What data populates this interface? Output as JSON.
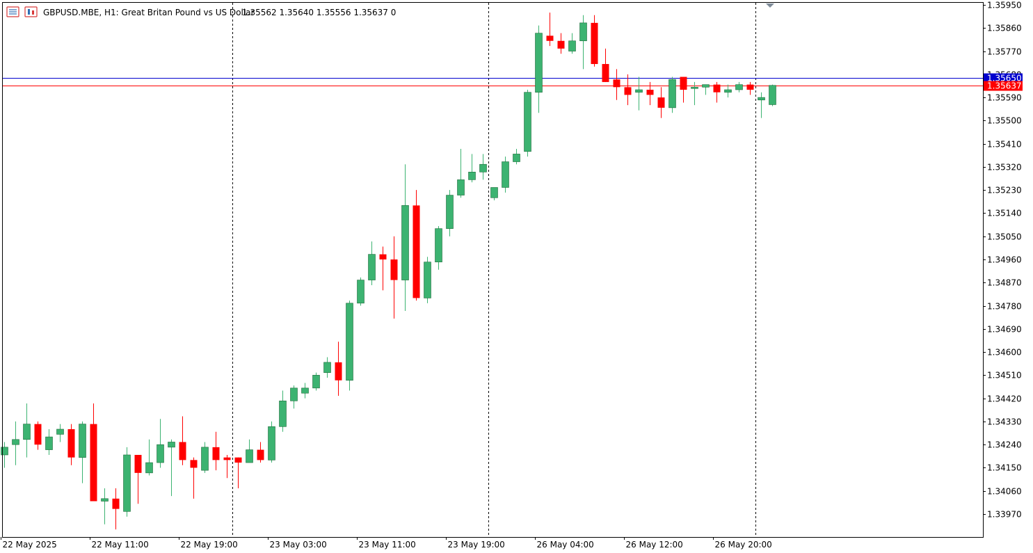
{
  "header": {
    "symbol_info": "GBPUSD.MBE, H1:  Great Britan Pound vs US Dollar",
    "ohlc": "1.35562 1.35640 1.35556 1.35637  0"
  },
  "colors": {
    "bull": "#3cb371",
    "bear": "#ff0000",
    "bid_line": "#0000cd",
    "ask_line": "#ff0000",
    "bid_tag": "#0000cd",
    "ask_tag": "#ff0000",
    "grid": "#000000",
    "axis": "#000000"
  },
  "chart_data": {
    "type": "candlestick",
    "symbol": "GBPUSD.MBE",
    "timeframe": "H1",
    "ylim": [
      1.33885,
      1.35955
    ],
    "y_ticks": [
      "1.35950",
      "1.35860",
      "1.35770",
      "1.35680",
      "1.35590",
      "1.35500",
      "1.35410",
      "1.35320",
      "1.35230",
      "1.35140",
      "1.35050",
      "1.34960",
      "1.34870",
      "1.34780",
      "1.34690",
      "1.34600",
      "1.34510",
      "1.34420",
      "1.34330",
      "1.34240",
      "1.34150",
      "1.34060",
      "1.33970"
    ],
    "x_ticks": [
      {
        "index": 0,
        "label": "22 May 2025"
      },
      {
        "index": 8,
        "label": "22 May 11:00"
      },
      {
        "index": 16,
        "label": "22 May 19:00"
      },
      {
        "index": 24,
        "label": "23 May 03:00"
      },
      {
        "index": 32,
        "label": "23 May 11:00"
      },
      {
        "index": 40,
        "label": "23 May 19:00"
      },
      {
        "index": 48,
        "label": "26 May 04:00"
      },
      {
        "index": 56,
        "label": "26 May 12:00"
      },
      {
        "index": 64,
        "label": "26 May 20:00"
      }
    ],
    "day_separators": [
      21,
      44,
      68
    ],
    "current_price": {
      "bid": 1.35637,
      "bid_label": "1.35637",
      "ask": 1.3565,
      "ask_label": "1.35650"
    },
    "candles": [
      {
        "o": 1.342,
        "h": 1.3425,
        "l": 1.3415,
        "c": 1.3423
      },
      {
        "o": 1.3424,
        "h": 1.3433,
        "l": 1.3416,
        "c": 1.3426
      },
      {
        "o": 1.3426,
        "h": 1.344,
        "l": 1.3419,
        "c": 1.3432
      },
      {
        "o": 1.3432,
        "h": 1.3433,
        "l": 1.3422,
        "c": 1.3424
      },
      {
        "o": 1.3422,
        "h": 1.343,
        "l": 1.342,
        "c": 1.3427
      },
      {
        "o": 1.3428,
        "h": 1.3432,
        "l": 1.3425,
        "c": 1.343
      },
      {
        "o": 1.343,
        "h": 1.3432,
        "l": 1.3416,
        "c": 1.3419
      },
      {
        "o": 1.3419,
        "h": 1.3433,
        "l": 1.3409,
        "c": 1.3432
      },
      {
        "o": 1.3432,
        "h": 1.344,
        "l": 1.3402,
        "c": 1.3402
      },
      {
        "o": 1.3402,
        "h": 1.3407,
        "l": 1.3393,
        "c": 1.3403
      },
      {
        "o": 1.3403,
        "h": 1.3407,
        "l": 1.3391,
        "c": 1.3399
      },
      {
        "o": 1.3398,
        "h": 1.3423,
        "l": 1.3396,
        "c": 1.342
      },
      {
        "o": 1.342,
        "h": 1.342,
        "l": 1.3401,
        "c": 1.3413
      },
      {
        "o": 1.3413,
        "h": 1.3426,
        "l": 1.3412,
        "c": 1.3417
      },
      {
        "o": 1.3417,
        "h": 1.3434,
        "l": 1.3415,
        "c": 1.3424
      },
      {
        "o": 1.3423,
        "h": 1.3426,
        "l": 1.3404,
        "c": 1.3425
      },
      {
        "o": 1.3425,
        "h": 1.3435,
        "l": 1.3416,
        "c": 1.3418
      },
      {
        "o": 1.3418,
        "h": 1.3419,
        "l": 1.3403,
        "c": 1.3415
      },
      {
        "o": 1.3414,
        "h": 1.3425,
        "l": 1.3413,
        "c": 1.3423
      },
      {
        "o": 1.3423,
        "h": 1.3429,
        "l": 1.3414,
        "c": 1.3418
      },
      {
        "o": 1.3419,
        "h": 1.342,
        "l": 1.3411,
        "c": 1.3418
      },
      {
        "o": 1.3419,
        "h": 1.3419,
        "l": 1.3407,
        "c": 1.3417
      },
      {
        "o": 1.3417,
        "h": 1.3426,
        "l": 1.3417,
        "c": 1.3422
      },
      {
        "o": 1.3422,
        "h": 1.3425,
        "l": 1.3417,
        "c": 1.3418
      },
      {
        "o": 1.3418,
        "h": 1.3433,
        "l": 1.3417,
        "c": 1.3431
      },
      {
        "o": 1.3431,
        "h": 1.3445,
        "l": 1.3429,
        "c": 1.3441
      },
      {
        "o": 1.3441,
        "h": 1.3447,
        "l": 1.3438,
        "c": 1.3446
      },
      {
        "o": 1.3444,
        "h": 1.3448,
        "l": 1.3442,
        "c": 1.3446
      },
      {
        "o": 1.3446,
        "h": 1.3452,
        "l": 1.3445,
        "c": 1.3451
      },
      {
        "o": 1.3452,
        "h": 1.3458,
        "l": 1.345,
        "c": 1.3456
      },
      {
        "o": 1.3456,
        "h": 1.3464,
        "l": 1.3443,
        "c": 1.3449
      },
      {
        "o": 1.3449,
        "h": 1.348,
        "l": 1.3445,
        "c": 1.3479
      },
      {
        "o": 1.3479,
        "h": 1.3489,
        "l": 1.3478,
        "c": 1.3488
      },
      {
        "o": 1.3488,
        "h": 1.3503,
        "l": 1.3486,
        "c": 1.3498
      },
      {
        "o": 1.3498,
        "h": 1.3501,
        "l": 1.3484,
        "c": 1.3496
      },
      {
        "o": 1.3496,
        "h": 1.3505,
        "l": 1.3473,
        "c": 1.3488
      },
      {
        "o": 1.3488,
        "h": 1.3533,
        "l": 1.3476,
        "c": 1.3517
      },
      {
        "o": 1.3517,
        "h": 1.3523,
        "l": 1.348,
        "c": 1.3481
      },
      {
        "o": 1.3481,
        "h": 1.3497,
        "l": 1.3479,
        "c": 1.3495
      },
      {
        "o": 1.3495,
        "h": 1.3509,
        "l": 1.3492,
        "c": 1.3508
      },
      {
        "o": 1.3508,
        "h": 1.3523,
        "l": 1.3505,
        "c": 1.3521
      },
      {
        "o": 1.3521,
        "h": 1.3539,
        "l": 1.352,
        "c": 1.3527
      },
      {
        "o": 1.3527,
        "h": 1.3537,
        "l": 1.3526,
        "c": 1.353
      },
      {
        "o": 1.353,
        "h": 1.3537,
        "l": 1.3527,
        "c": 1.3533
      },
      {
        "o": 1.352,
        "h": 1.3524,
        "l": 1.3519,
        "c": 1.3524
      },
      {
        "o": 1.3524,
        "h": 1.3536,
        "l": 1.3522,
        "c": 1.3534
      },
      {
        "o": 1.3534,
        "h": 1.3539,
        "l": 1.3533,
        "c": 1.3537
      },
      {
        "o": 1.3538,
        "h": 1.3562,
        "l": 1.3536,
        "c": 1.3561
      },
      {
        "o": 1.3561,
        "h": 1.3587,
        "l": 1.3553,
        "c": 1.3584
      },
      {
        "o": 1.3583,
        "h": 1.3592,
        "l": 1.3579,
        "c": 1.3581
      },
      {
        "o": 1.3581,
        "h": 1.3584,
        "l": 1.3576,
        "c": 1.3578
      },
      {
        "o": 1.3577,
        "h": 1.3584,
        "l": 1.3576,
        "c": 1.3581
      },
      {
        "o": 1.3581,
        "h": 1.3591,
        "l": 1.357,
        "c": 1.3588
      },
      {
        "o": 1.3588,
        "h": 1.3591,
        "l": 1.3571,
        "c": 1.3572
      },
      {
        "o": 1.3572,
        "h": 1.3578,
        "l": 1.3565,
        "c": 1.3565
      },
      {
        "o": 1.3566,
        "h": 1.357,
        "l": 1.3558,
        "c": 1.3563
      },
      {
        "o": 1.3563,
        "h": 1.3568,
        "l": 1.3556,
        "c": 1.356
      },
      {
        "o": 1.3561,
        "h": 1.3567,
        "l": 1.3554,
        "c": 1.3562
      },
      {
        "o": 1.3562,
        "h": 1.3565,
        "l": 1.3556,
        "c": 1.356
      },
      {
        "o": 1.3559,
        "h": 1.3563,
        "l": 1.3551,
        "c": 1.3555
      },
      {
        "o": 1.3555,
        "h": 1.3567,
        "l": 1.3553,
        "c": 1.3566
      },
      {
        "o": 1.3567,
        "h": 1.3567,
        "l": 1.3557,
        "c": 1.3562
      },
      {
        "o": 1.3563,
        "h": 1.3565,
        "l": 1.3556,
        "c": 1.3563
      },
      {
        "o": 1.3563,
        "h": 1.3564,
        "l": 1.356,
        "c": 1.3564
      },
      {
        "o": 1.3564,
        "h": 1.3565,
        "l": 1.3557,
        "c": 1.3561
      },
      {
        "o": 1.3561,
        "h": 1.3564,
        "l": 1.3559,
        "c": 1.3562
      },
      {
        "o": 1.3562,
        "h": 1.3565,
        "l": 1.3561,
        "c": 1.3564
      },
      {
        "o": 1.3564,
        "h": 1.3565,
        "l": 1.356,
        "c": 1.3562
      },
      {
        "o": 1.3558,
        "h": 1.3561,
        "l": 1.3551,
        "c": 1.3559
      },
      {
        "o": 1.35562,
        "h": 1.3564,
        "l": 1.35556,
        "c": 1.35637
      }
    ]
  }
}
